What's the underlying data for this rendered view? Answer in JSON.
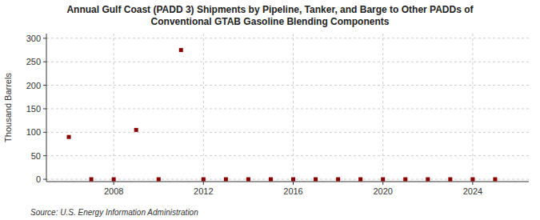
{
  "chart_data": {
    "type": "scatter",
    "title": "Annual Gulf Coast (PADD 3) Shipments by Pipeline, Tanker, and Barge to Other PADDs of\nConventional GTAB Gasoline Blending Components",
    "y_label": "Thousand Barrels",
    "source": "Source: U.S. Energy Information Administration",
    "x": [
      2006,
      2007,
      2008,
      2009,
      2010,
      2011,
      2012,
      2013,
      2014,
      2015,
      2016,
      2017,
      2018,
      2019,
      2020,
      2021,
      2022,
      2023,
      2024,
      2025
    ],
    "values": [
      90,
      0,
      0,
      105,
      0,
      275,
      0,
      0,
      0,
      0,
      0,
      0,
      0,
      0,
      0,
      0,
      0,
      0,
      0,
      0
    ],
    "color": "#8b0000",
    "marker": "square",
    "xlim": [
      2005.0,
      2026.5
    ],
    "ylim": [
      -5,
      310
    ],
    "xticks": [
      2008,
      2012,
      2016,
      2020,
      2024
    ],
    "yticks": [
      0,
      50,
      100,
      150,
      200,
      250,
      300
    ],
    "grid": true
  }
}
